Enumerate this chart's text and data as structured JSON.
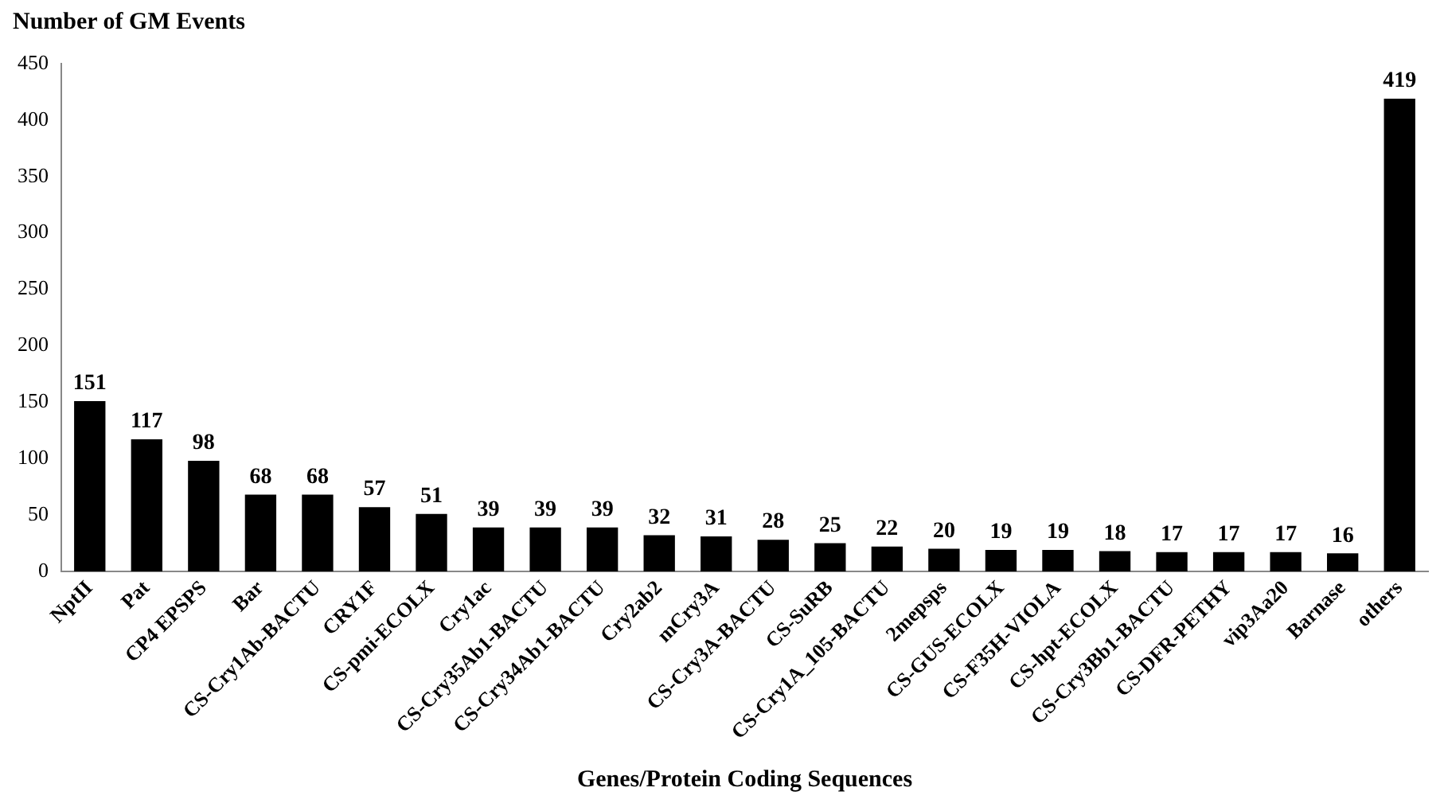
{
  "chart_data": {
    "type": "bar",
    "ylabel": "Number of GM Events",
    "xlabel": "Genes/Protein Coding Sequences",
    "categories": [
      "NptII",
      "Pat",
      "CP4 EPSPS",
      "Bar",
      "CS-Cry1Ab-BACTU",
      "CRY1F",
      "CS-pmi-ECOLX",
      "Cry1ac",
      "CS-Cry35Ab1-BACTU",
      "CS-Cry34Ab1-BACTU",
      "Cry2ab2",
      "mCry3A",
      "CS-Cry3A-BACTU",
      "CS-SuRB",
      "CS-Cry1A_105-BACTU",
      "2mepsps",
      "CS-GUS-ECOLX",
      "CS-F35H-VIOLA",
      "CS-hpt-ECOLX",
      "CS-Cry3Bb1-BACTU",
      "CS-DFR-PETHY",
      "vip3Aa20",
      "Barnase",
      "others"
    ],
    "values": [
      151,
      117,
      98,
      68,
      68,
      57,
      51,
      39,
      39,
      39,
      32,
      31,
      28,
      25,
      22,
      20,
      19,
      19,
      18,
      17,
      17,
      17,
      16,
      419
    ],
    "color": "#000000",
    "ylim": [
      0,
      450
    ],
    "yticks": [
      0,
      50,
      100,
      150,
      200,
      250,
      300,
      350,
      400,
      450
    ],
    "grid": false,
    "legend": false,
    "data_labels": true
  }
}
